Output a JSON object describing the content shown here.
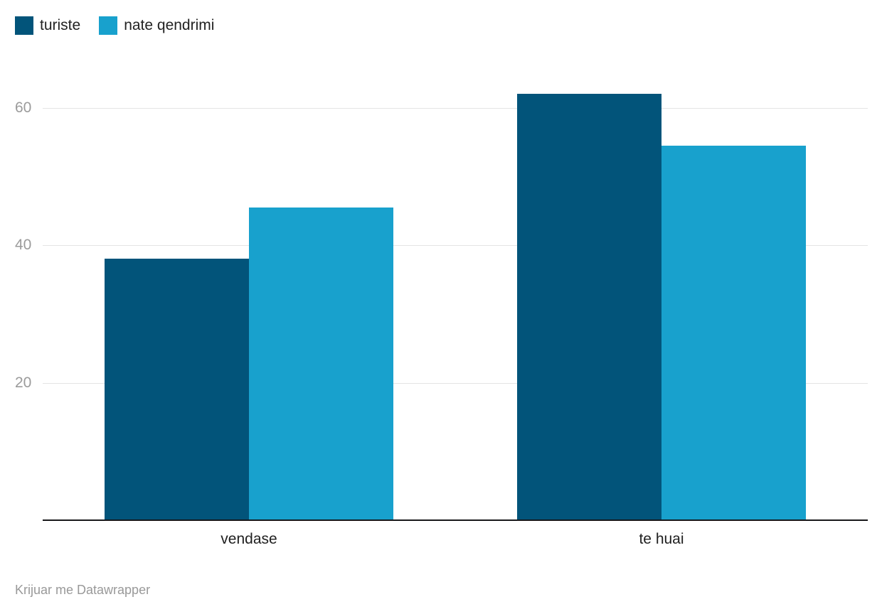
{
  "chart_data": {
    "type": "bar",
    "categories": [
      "vendase",
      "te huai"
    ],
    "series": [
      {
        "name": "turiste",
        "color": "#02547a",
        "values": [
          38,
          62
        ]
      },
      {
        "name": "nate qendrimi",
        "color": "#18a1cd",
        "values": [
          45.5,
          54.5
        ]
      }
    ],
    "title": "",
    "xlabel": "",
    "ylabel": "",
    "yticks": [
      20,
      40,
      60
    ],
    "ylim": [
      0,
      75
    ],
    "grid": "horizontal",
    "legend_position": "top-left"
  },
  "legend": {
    "items": [
      {
        "label": "turiste",
        "color": "#02547a"
      },
      {
        "label": "nate qendrimi",
        "color": "#18a1cd"
      }
    ]
  },
  "colors": {
    "axis_line": "#18181a",
    "gridline": "#e4e4e4",
    "tick_label": "#9b9b9b",
    "category_label": "#1f1f1f",
    "footer_text": "#999999",
    "background": "#ffffff"
  },
  "footer": {
    "attribution": "Krijuar me Datawrapper"
  }
}
